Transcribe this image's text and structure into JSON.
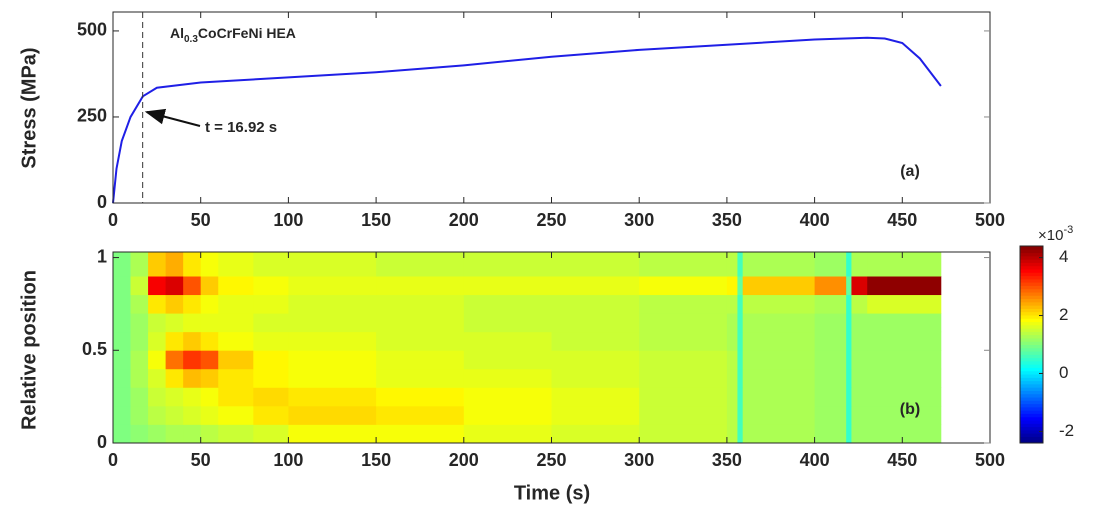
{
  "chart_data": [
    {
      "type": "line",
      "ylabel": "Stress (MPa)",
      "panel_label": "(a)",
      "material": {
        "base": "Al",
        "sub": "0.3",
        "rest": "CoCrFeNi HEA"
      },
      "annotation": {
        "text": "t = 16.92 s",
        "x": 16.92
      },
      "x": [
        0,
        2,
        5,
        10,
        17,
        25,
        50,
        100,
        150,
        200,
        250,
        300,
        350,
        400,
        430,
        440,
        450,
        460,
        472
      ],
      "values": [
        0,
        100,
        180,
        250,
        310,
        335,
        350,
        365,
        380,
        400,
        425,
        445,
        460,
        475,
        480,
        478,
        465,
        420,
        340
      ],
      "color": "#1f1fe6",
      "xlim": [
        0,
        500
      ],
      "xticks": [
        0,
        50,
        100,
        150,
        200,
        250,
        300,
        350,
        400,
        450,
        500
      ],
      "ylim": [
        0,
        555
      ],
      "yticks": [
        0,
        250,
        500
      ]
    },
    {
      "type": "heatmap",
      "xlabel": "Time (s)",
      "ylabel": "Relative position",
      "panel_label": "(b)",
      "x_edges": [
        0,
        10,
        20,
        30,
        40,
        50,
        60,
        80,
        100,
        150,
        200,
        250,
        300,
        350,
        356,
        359,
        400,
        418,
        421,
        430,
        472
      ],
      "y_edges": [
        0,
        0.1,
        0.2,
        0.3,
        0.4,
        0.5,
        0.6,
        0.7,
        0.8,
        0.9,
        1.03
      ],
      "z": [
        [
          1.0,
          1.1,
          1.2,
          1.3,
          1.3,
          1.4,
          1.5,
          1.6,
          1.8,
          1.8,
          1.7,
          1.6,
          1.5,
          1.4,
          0.6,
          1.3,
          1.2,
          0.5,
          1.2,
          1.2
        ],
        [
          1.0,
          1.2,
          1.4,
          1.5,
          1.6,
          1.7,
          1.8,
          2.0,
          2.1,
          2.0,
          1.8,
          1.7,
          1.5,
          1.4,
          0.6,
          1.3,
          1.2,
          0.5,
          1.2,
          1.2
        ],
        [
          1.0,
          1.2,
          1.5,
          1.6,
          1.7,
          1.8,
          2.0,
          2.1,
          2.0,
          1.9,
          1.8,
          1.7,
          1.5,
          1.4,
          0.6,
          1.3,
          1.2,
          0.5,
          1.2,
          1.2
        ],
        [
          1.0,
          1.3,
          1.6,
          2.0,
          2.3,
          2.2,
          2.0,
          1.9,
          1.8,
          1.7,
          1.7,
          1.6,
          1.5,
          1.4,
          0.6,
          1.3,
          1.2,
          0.5,
          1.2,
          1.2
        ],
        [
          1.0,
          1.3,
          1.8,
          2.8,
          3.2,
          3.0,
          2.2,
          1.9,
          1.8,
          1.7,
          1.6,
          1.6,
          1.5,
          1.4,
          0.6,
          1.3,
          1.2,
          0.5,
          1.2,
          1.2
        ],
        [
          1.0,
          1.2,
          1.6,
          2.0,
          2.2,
          2.0,
          1.8,
          1.7,
          1.7,
          1.6,
          1.6,
          1.5,
          1.4,
          1.3,
          0.6,
          1.3,
          1.2,
          0.5,
          1.2,
          1.2
        ],
        [
          1.0,
          1.2,
          1.5,
          1.6,
          1.7,
          1.7,
          1.7,
          1.6,
          1.6,
          1.6,
          1.5,
          1.5,
          1.4,
          1.3,
          0.6,
          1.3,
          1.2,
          0.5,
          1.2,
          1.2
        ],
        [
          1.0,
          1.3,
          2.0,
          2.2,
          2.0,
          1.8,
          1.7,
          1.7,
          1.6,
          1.6,
          1.5,
          1.5,
          1.4,
          1.4,
          0.6,
          1.4,
          1.3,
          0.5,
          1.4,
          1.6
        ],
        [
          1.0,
          1.5,
          3.6,
          3.8,
          3.0,
          2.2,
          1.9,
          1.8,
          1.7,
          1.7,
          1.7,
          1.7,
          1.8,
          1.9,
          0.8,
          2.2,
          2.6,
          0.8,
          3.8,
          4.3
        ],
        [
          1.0,
          1.3,
          2.2,
          2.4,
          2.0,
          1.8,
          1.7,
          1.6,
          1.6,
          1.5,
          1.5,
          1.5,
          1.4,
          1.4,
          0.6,
          1.3,
          1.2,
          0.5,
          1.3,
          1.3
        ]
      ],
      "colormap": "jet",
      "clim": [
        -2.4,
        4.4
      ],
      "cticks": [
        -2,
        0,
        2,
        4
      ],
      "colorbar_scale": {
        "base": "×10",
        "exponent": "-3"
      },
      "xlim": [
        0,
        500
      ],
      "xticks": [
        0,
        50,
        100,
        150,
        200,
        250,
        300,
        350,
        400,
        450,
        500
      ],
      "ylim": [
        0,
        1.03
      ],
      "yticks": [
        0,
        0.5,
        1
      ]
    }
  ]
}
